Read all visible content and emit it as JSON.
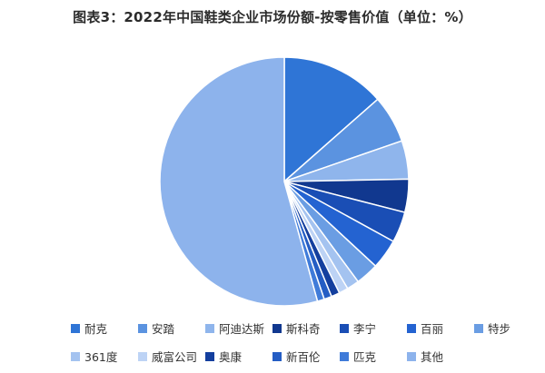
{
  "chart_data": {
    "type": "pie",
    "title": "图表3：2022年中国鞋类企业市场份额-按零售价值（单位：%）",
    "legend_position": "bottom",
    "slices": [
      {
        "name": "耐克",
        "value": 13.5,
        "color": "#2f75d6"
      },
      {
        "name": "安踏",
        "value": 6.2,
        "color": "#5b93e0"
      },
      {
        "name": "阿迪达斯",
        "value": 5.0,
        "color": "#8fb5ec"
      },
      {
        "name": "斯科奇",
        "value": 4.3,
        "color": "#11388f"
      },
      {
        "name": "李宁",
        "value": 4.0,
        "color": "#1a4eb5"
      },
      {
        "name": "百丽",
        "value": 3.9,
        "color": "#2463d1"
      },
      {
        "name": "特步",
        "value": 3.0,
        "color": "#6a9de3"
      },
      {
        "name": "361度",
        "value": 1.6,
        "color": "#a4c3f0"
      },
      {
        "name": "威富公司",
        "value": 1.2,
        "color": "#bdd3f5"
      },
      {
        "name": "奥康",
        "value": 1.1,
        "color": "#143f9e"
      },
      {
        "name": "新百伦",
        "value": 1.0,
        "color": "#245dc4"
      },
      {
        "name": "匹克",
        "value": 0.9,
        "color": "#3f7bd9"
      },
      {
        "name": "其他",
        "value": 54.3,
        "color": "#8db3ec"
      }
    ]
  },
  "legend_items": [
    "耐克",
    "安踏",
    "阿迪达斯",
    "斯科奇",
    "李宁",
    "百丽",
    "特步",
    "361度",
    "威富公司",
    "奥康",
    "新百伦",
    "匹克",
    "其他"
  ]
}
